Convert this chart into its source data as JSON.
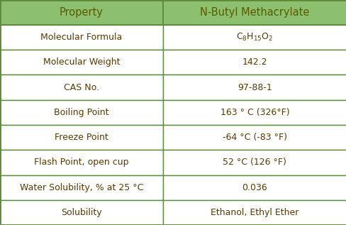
{
  "header_bg": "#8dc06e",
  "header_text_color": "#5a5a00",
  "row_bg": "#ffffff",
  "border_color": "#5a8a3a",
  "text_color": "#5a3a00",
  "flash_text_color": "#c86400",
  "header": [
    "Property",
    "N-Butyl Methacrylate"
  ],
  "rows": [
    [
      "Molecular Formula",
      "mol_formula"
    ],
    [
      "Molecular Weight",
      "142.2"
    ],
    [
      "CAS No.",
      "97-88-1"
    ],
    [
      "Boiling Point",
      "163 ° C (326°F)"
    ],
    [
      "Freeze Point",
      "-64 °C (-83 °F)"
    ],
    [
      "Flash Point, open cup",
      "52 °C (126 °F)"
    ],
    [
      "Water Solubility, % at 25 °C",
      "0.036"
    ],
    [
      "Solubility",
      "Ethanol, Ethyl Ether"
    ]
  ],
  "col_split": 0.47,
  "font_size": 9.0,
  "header_font_size": 10.5,
  "fig_width": 4.89,
  "fig_height": 3.17,
  "dpi": 100
}
